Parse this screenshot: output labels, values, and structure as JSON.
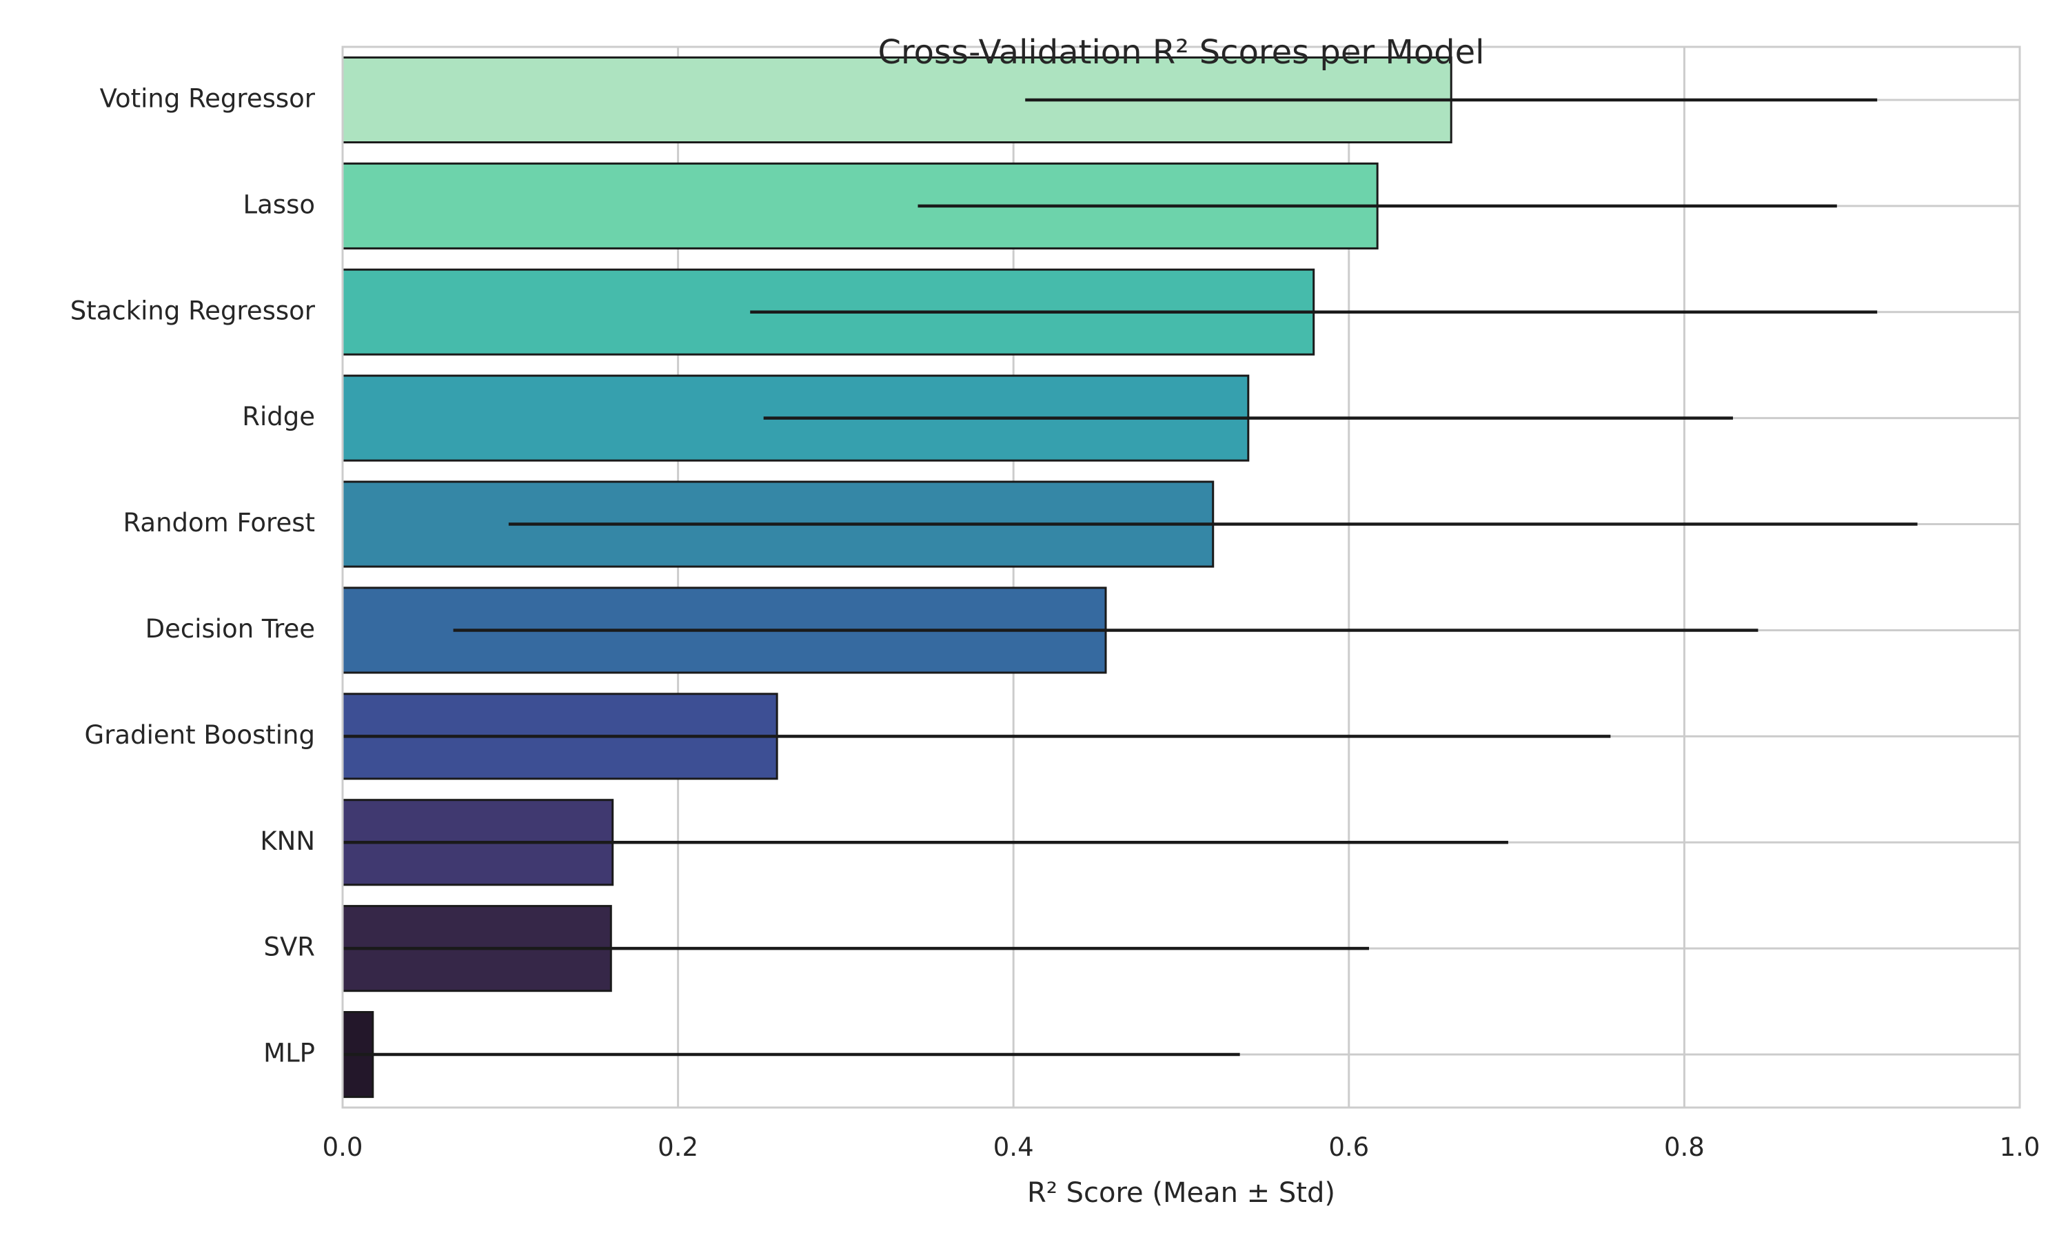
{
  "chart_data": {
    "type": "bar",
    "orientation": "horizontal",
    "title": "Cross-Validation R² Scores per Model",
    "xlabel": "R² Score (Mean ± Std)",
    "ylabel": "",
    "xlim": [
      0,
      1.0
    ],
    "xticks": [
      0.0,
      0.2,
      0.4,
      0.6,
      0.8,
      1.0
    ],
    "xtick_labels": [
      "0.0",
      "0.2",
      "0.4",
      "0.6",
      "0.8",
      "1.0"
    ],
    "grid": true,
    "legend": "none",
    "categories": [
      "Voting Regressor",
      "Lasso",
      "Stacking Regressor",
      "Ridge",
      "Random Forest",
      "Decision Tree",
      "Gradient Boosting",
      "KNN",
      "SVR",
      "MLP"
    ],
    "values": [
      0.661,
      0.617,
      0.579,
      0.54,
      0.519,
      0.455,
      0.259,
      0.161,
      0.16,
      0.018
    ],
    "errors": [
      0.254,
      0.274,
      0.336,
      0.289,
      0.42,
      0.389,
      0.497,
      0.534,
      0.452,
      0.517
    ],
    "colors": [
      "#ade3c0",
      "#6dd3ab",
      "#46bbab",
      "#36a0ae",
      "#3587a6",
      "#366aa0",
      "#3d4f94",
      "#403970",
      "#362748",
      "#23172a"
    ]
  }
}
